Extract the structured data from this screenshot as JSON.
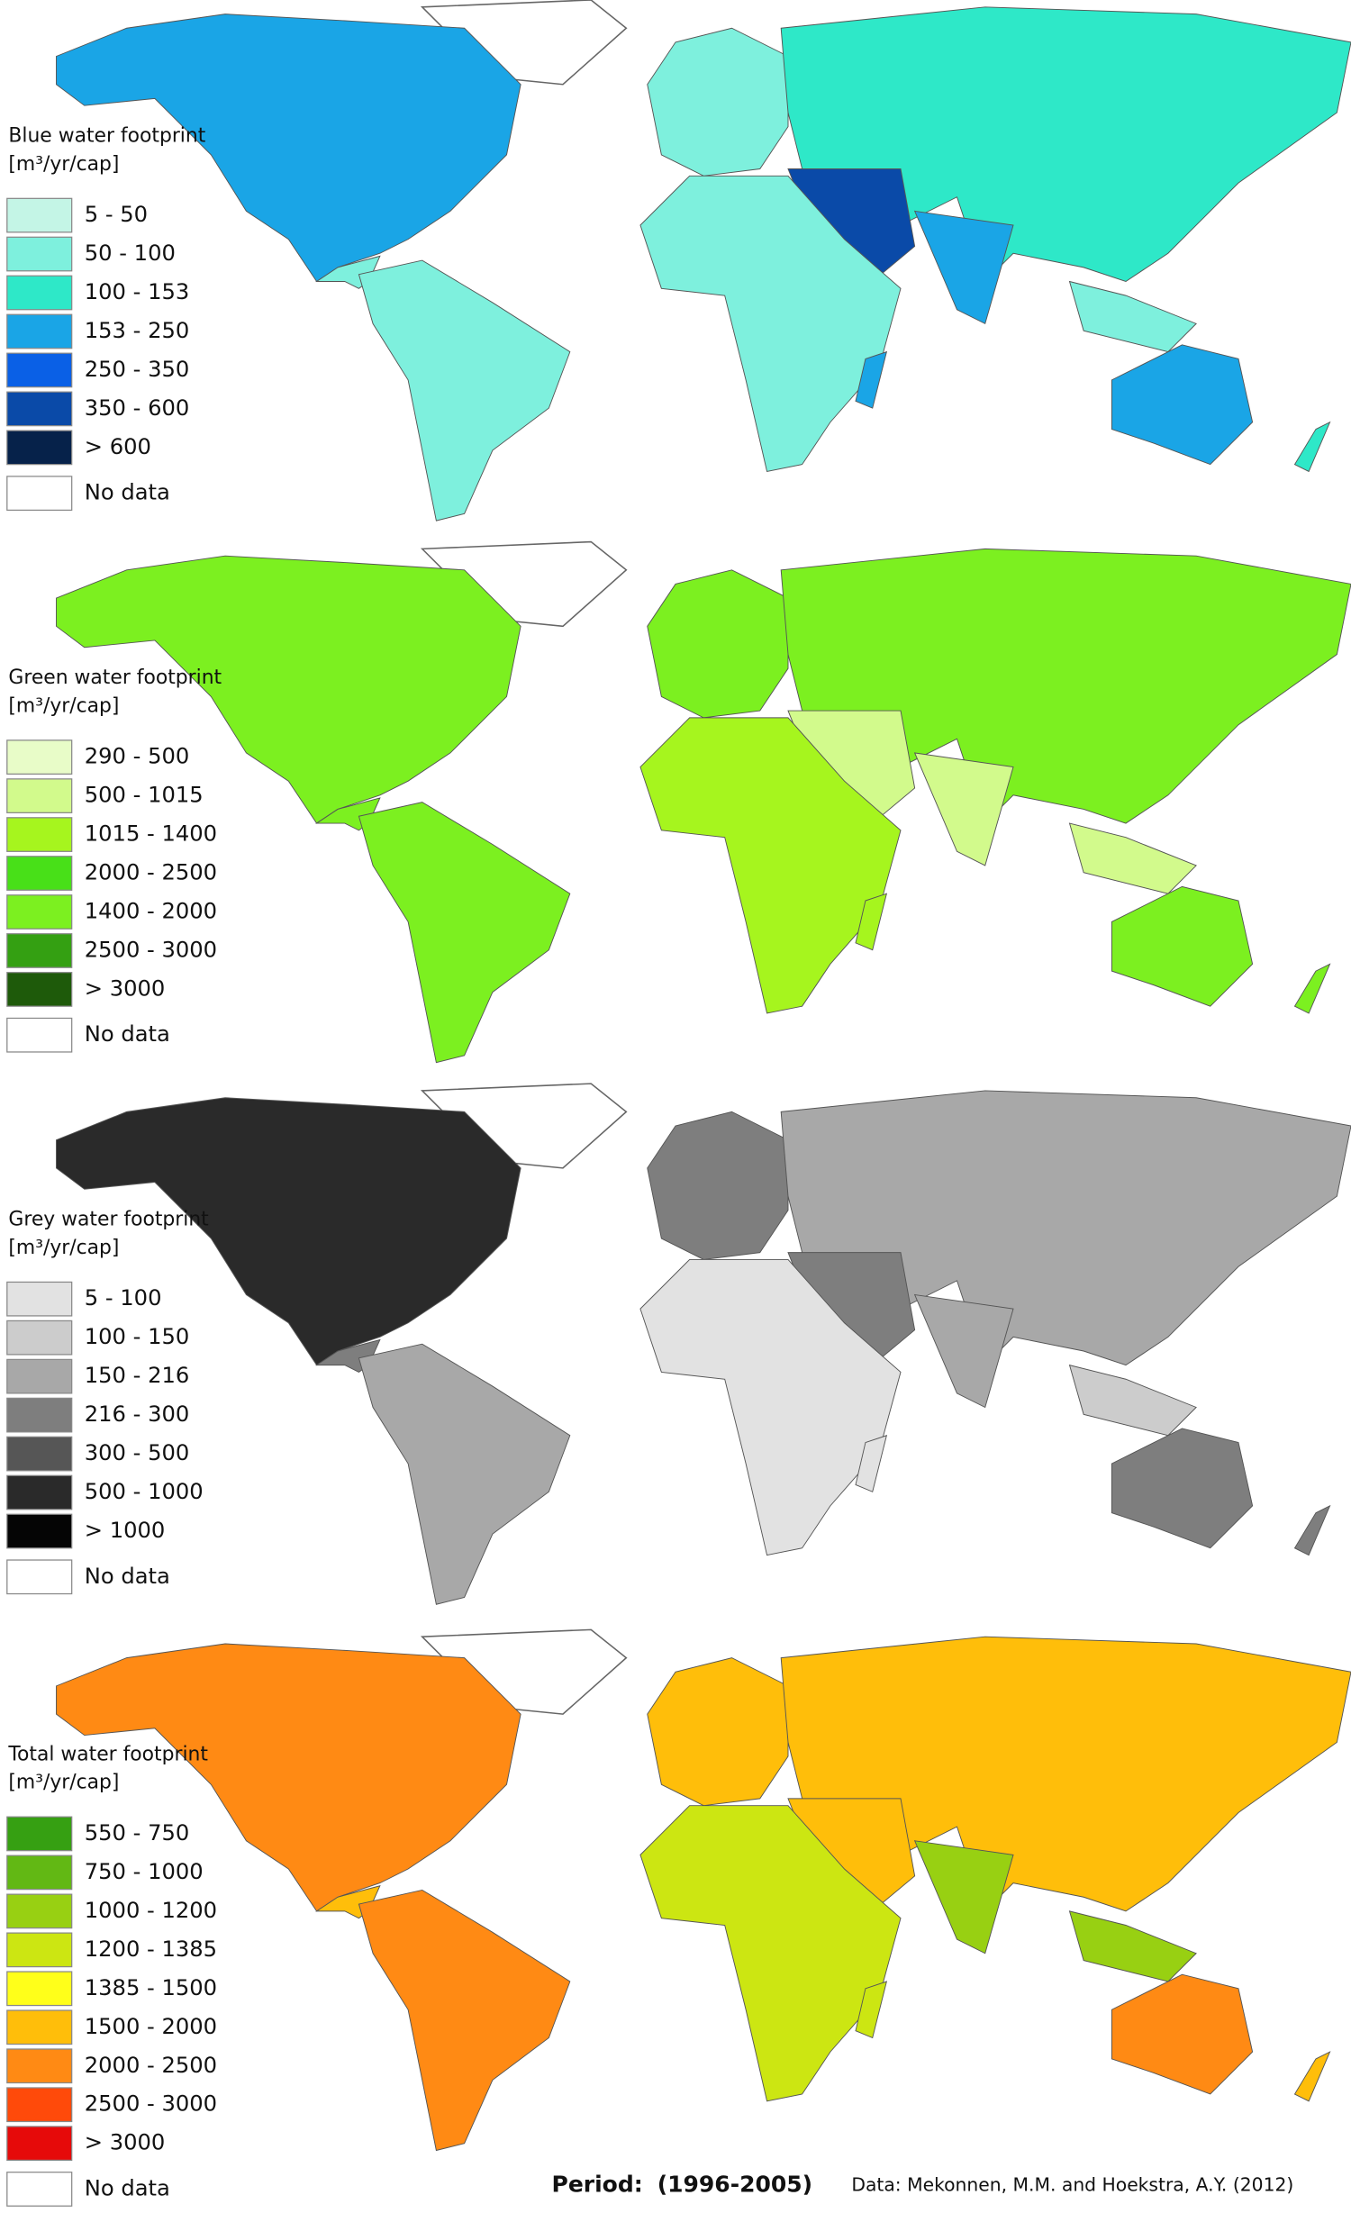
{
  "maps": [
    {
      "title": "Blue water footprint",
      "unit": "[m³/yr/cap]",
      "legend": [
        {
          "label": "5 - 50",
          "color": "#c4f5e6"
        },
        {
          "label": "50 - 100",
          "color": "#7ef0dd"
        },
        {
          "label": "100 - 153",
          "color": "#2ee8c8"
        },
        {
          "label": "153 - 250",
          "color": "#1aa5e6"
        },
        {
          "label": "250 - 350",
          "color": "#0a60e6"
        },
        {
          "label": "350 - 600",
          "color": "#0a4aa8"
        },
        {
          "label": "> 600",
          "color": "#06224a"
        }
      ],
      "no_data": {
        "label": "No data",
        "color": "#ffffff"
      }
    },
    {
      "title": "Green water footprint",
      "unit": "[m³/yr/cap]",
      "legend": [
        {
          "label": "290 - 500",
          "color": "#e8fcc8"
        },
        {
          "label": "500 - 1015",
          "color": "#d2fa8c"
        },
        {
          "label": "1015 - 1400",
          "color": "#a6f51e"
        },
        {
          "label": "2000 - 2500",
          "color": "#48e018"
        },
        {
          "label": "1400 - 2000",
          "color": "#7cf020"
        },
        {
          "label": "2500 - 3000",
          "color": "#34a012"
        },
        {
          "label": "> 3000",
          "color": "#1e5a0a"
        }
      ],
      "no_data": {
        "label": "No data",
        "color": "#ffffff"
      }
    },
    {
      "title": "Grey water footprint",
      "unit": "[m³/yr/cap]",
      "legend": [
        {
          "label": "5 - 100",
          "color": "#e2e2e2"
        },
        {
          "label": "100 - 150",
          "color": "#cccccc"
        },
        {
          "label": "150 - 216",
          "color": "#a8a8a8"
        },
        {
          "label": "216 - 300",
          "color": "#7e7e7e"
        },
        {
          "label": "300 - 500",
          "color": "#565656"
        },
        {
          "label": "500 - 1000",
          "color": "#2a2a2a"
        },
        {
          "label": "> 1000",
          "color": "#050505"
        }
      ],
      "no_data": {
        "label": "No data",
        "color": "#ffffff"
      }
    },
    {
      "title": "Total water footprint",
      "unit": "[m³/yr/cap]",
      "legend": [
        {
          "label": "550 - 750",
          "color": "#36a012"
        },
        {
          "label": "750 - 1000",
          "color": "#62b814"
        },
        {
          "label": "1000 - 1200",
          "color": "#98d012"
        },
        {
          "label": "1200 - 1385",
          "color": "#cce612"
        },
        {
          "label": "1385 - 1500",
          "color": "#ffff1a"
        },
        {
          "label": "1500 - 2000",
          "color": "#ffbe0a"
        },
        {
          "label": "2000 - 2500",
          "color": "#ff8a14"
        },
        {
          "label": "2500 - 3000",
          "color": "#ff4a0a"
        },
        {
          "label": "> 3000",
          "color": "#e60a0a"
        }
      ],
      "no_data": {
        "label": "No data",
        "color": "#ffffff"
      }
    }
  ],
  "footer": {
    "period_label": "Period:",
    "period": "(1996-2005)",
    "source": "Data: Mekonnen, M.M. and Hoekstra, A.Y. (2012)"
  }
}
